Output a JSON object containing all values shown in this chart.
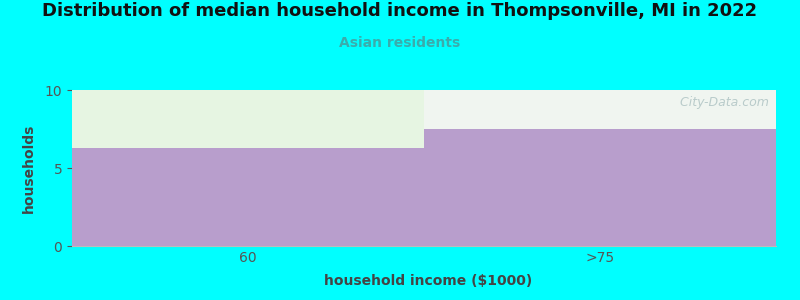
{
  "title": "Distribution of median household income in Thompsonville, MI in 2022",
  "subtitle": "Asian residents",
  "xlabel": "household income ($1000)",
  "ylabel": "households",
  "categories": [
    "60",
    ">75"
  ],
  "values": [
    6.3,
    7.5
  ],
  "ylim": [
    0,
    10
  ],
  "yticks": [
    0,
    5,
    10
  ],
  "bar_color": "#b89ecc",
  "bg_color": "#00ffff",
  "plot_bg_color": "#ffffff",
  "bar_above_color_left": "#e6f5e2",
  "bar_above_color_right": "#f0f5f0",
  "title_fontsize": 13,
  "subtitle_fontsize": 10,
  "subtitle_color": "#3aacac",
  "watermark": "  City-Data.com",
  "tick_color": "#555555",
  "label_color": "#444444"
}
